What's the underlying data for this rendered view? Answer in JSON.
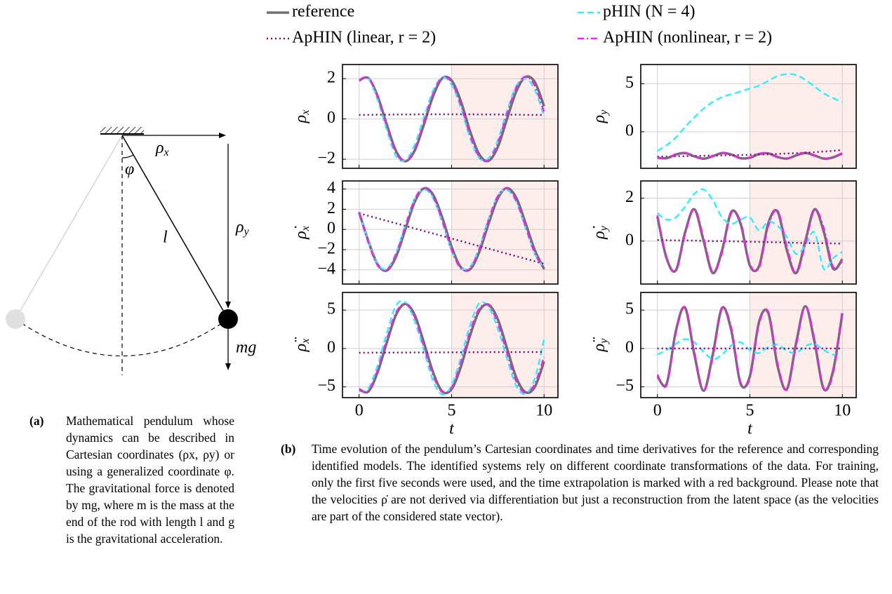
{
  "diagram": {
    "rho_x": "ρ",
    "rho_x_sub": "x",
    "rho_y": "ρ",
    "rho_y_sub": "y",
    "l": "l",
    "mg": "mg",
    "phi": "φ"
  },
  "captions": {
    "a": {
      "label": "(a)",
      "text": "Mathematical pendulum whose dynamics can be described in Cartesian coordinates (ρx, ρy) or using a generalized coordinate φ. The gravitational force is denoted by mg, where m is the mass at the end of the rod with length l and g is the gravitational acceleration."
    },
    "b": {
      "label": "(b)",
      "text": "Time evolution of the pendulum’s Cartesian coordinates and time derivatives for the reference and corresponding identified models. The identified systems rely on different coordinate transformations of the data. For training, only the first five seconds were used, and the time extrapolation is marked with a red background. Please note that the velocities ρ̇ are not derived via differentiation but just a reconstruction from the latent space (as the velocities are part of the considered state vector)."
    }
  },
  "chart_data": [
    {
      "type": "line",
      "ylabel": "ρ",
      "ylabel_sub": "x",
      "xlim": [
        -0.9,
        10.75
      ],
      "xticks": [
        0,
        5,
        10
      ],
      "ylim": [
        -2.45,
        2.7
      ],
      "yticks": [
        {
          "value": -2,
          "label": "−2"
        },
        0,
        2
      ],
      "grid": true,
      "shade_from": 5,
      "x": [
        0,
        0.5,
        1,
        1.5,
        2,
        2.5,
        3,
        3.5,
        4,
        4.5,
        5,
        5.5,
        6,
        6.5,
        7,
        7.5,
        8,
        8.5,
        9,
        9.5,
        10
      ],
      "series": [
        {
          "name": "reference",
          "color": "#707070",
          "style": "solid",
          "values": [
            1.91,
            2.02,
            1.13,
            -0.29,
            -1.6,
            -2.1,
            -1.58,
            -0.29,
            1.13,
            2.02,
            1.91,
            0.88,
            -0.61,
            -1.76,
            -2.08,
            -1.39,
            0.01,
            1.37,
            2.08,
            1.83,
            0.63
          ]
        },
        {
          "name": "pHIN (N = 4)",
          "color": "#33eeff",
          "style": "dashed",
          "values": [
            1.95,
            2.0,
            0.95,
            -0.55,
            -1.85,
            -2.05,
            -1.3,
            0.05,
            1.4,
            2.05,
            1.7,
            0.55,
            -0.95,
            -1.95,
            -1.95,
            -1.05,
            0.4,
            1.65,
            2.0,
            1.45,
            0.15
          ]
        },
        {
          "name": "ApHIN (linear, r = 2)",
          "color": "#7a0a7a",
          "style": "dotted",
          "values": [
            0.2,
            0.2,
            0.21,
            0.21,
            0.22,
            0.22,
            0.22,
            0.23,
            0.23,
            0.23,
            0.23,
            0.23,
            0.23,
            0.22,
            0.22,
            0.22,
            0.21,
            0.21,
            0.2,
            0.2,
            0.2
          ]
        },
        {
          "name": "ApHIN (nonlinear, r = 2)",
          "color": "#ee22ee",
          "style": "dashdot",
          "values": [
            1.93,
            2.03,
            1.08,
            -0.38,
            -1.68,
            -2.1,
            -1.5,
            -0.15,
            1.25,
            2.05,
            1.82,
            0.7,
            -0.8,
            -1.88,
            -2.05,
            -1.2,
            0.25,
            1.55,
            2.1,
            1.65,
            0.35
          ]
        }
      ]
    },
    {
      "type": "line",
      "ylabel": "ρ",
      "ylabel_sub": "y",
      "xlim": [
        -0.9,
        10.75
      ],
      "xticks": [
        0,
        5,
        10
      ],
      "ylim": [
        -3.8,
        7
      ],
      "yticks": [
        0,
        5
      ],
      "grid": true,
      "shade_from": 5,
      "x": [
        0,
        0.5,
        1,
        1.5,
        2,
        2.5,
        3,
        3.5,
        4,
        4.5,
        5,
        5.5,
        6,
        6.5,
        7,
        7.5,
        8,
        8.5,
        9,
        9.5,
        10
      ],
      "series": [
        {
          "color": "#707070",
          "style": "solid",
          "values": [
            -2.7,
            -2.75,
            -2.37,
            -2.21,
            -2.55,
            -2.8,
            -2.54,
            -2.21,
            -2.37,
            -2.75,
            -2.7,
            -2.31,
            -2.25,
            -2.62,
            -2.79,
            -2.46,
            -2.2,
            -2.46,
            -2.79,
            -2.66,
            -2.25
          ]
        },
        {
          "color": "#33eeff",
          "style": "dashed",
          "values": [
            -2.0,
            -1.4,
            -0.6,
            0.5,
            1.5,
            2.4,
            3.1,
            3.6,
            3.9,
            4.2,
            4.5,
            4.8,
            5.3,
            5.8,
            6.0,
            5.9,
            5.4,
            4.7,
            4.0,
            3.5,
            3.1
          ]
        },
        {
          "color": "#7a0a7a",
          "style": "dotted",
          "values": [
            -2.6,
            -2.58,
            -2.56,
            -2.54,
            -2.52,
            -2.5,
            -2.48,
            -2.46,
            -2.44,
            -2.42,
            -2.4,
            -2.37,
            -2.34,
            -2.3,
            -2.26,
            -2.22,
            -2.17,
            -2.12,
            -2.05,
            -1.98,
            -1.9
          ]
        },
        {
          "color": "#ee22ee",
          "style": "dashdot",
          "values": [
            -2.72,
            -2.74,
            -2.33,
            -2.2,
            -2.58,
            -2.8,
            -2.5,
            -2.2,
            -2.41,
            -2.77,
            -2.66,
            -2.27,
            -2.28,
            -2.67,
            -2.78,
            -2.41,
            -2.2,
            -2.51,
            -2.8,
            -2.6,
            -2.22
          ]
        }
      ]
    },
    {
      "type": "line",
      "ylabel": "ρ̇",
      "ylabel_sub": "x",
      "xlim": [
        -0.9,
        10.75
      ],
      "xticks": [
        0,
        5,
        10
      ],
      "ylim": [
        -5.4,
        4.8
      ],
      "yticks": [
        {
          "value": -4,
          "label": "−4"
        },
        {
          "value": -2,
          "label": "−2"
        },
        0,
        2,
        4
      ],
      "grid": true,
      "shade_from": 5,
      "x": [
        0,
        0.5,
        1,
        1.5,
        2,
        2.5,
        3,
        3.5,
        4,
        4.5,
        5,
        5.5,
        6,
        6.5,
        7,
        7.5,
        8,
        8.5,
        9,
        9.5,
        10
      ],
      "series": [
        {
          "color": "#707070",
          "style": "solid",
          "values": [
            1.7,
            -1.16,
            -3.45,
            -4.06,
            -2.67,
            0,
            2.7,
            4.06,
            3.44,
            1.15,
            -1.72,
            -3.73,
            -3.94,
            -2.21,
            0.57,
            3.08,
            4.1,
            3.12,
            0.62,
            -2.05,
            -3.9
          ]
        },
        {
          "color": "#33eeff",
          "style": "dashed",
          "values": [
            1.75,
            -1.2,
            -3.4,
            -3.9,
            -2.3,
            0.45,
            3.0,
            3.95,
            3.1,
            0.7,
            -2.1,
            -3.8,
            -3.7,
            -1.8,
            1.05,
            3.35,
            3.9,
            2.7,
            0.15,
            -2.4,
            -3.8
          ]
        },
        {
          "color": "#7a0a7a",
          "style": "dotted",
          "values": [
            1.6,
            1.35,
            1.1,
            0.85,
            0.6,
            0.35,
            0.1,
            -0.15,
            -0.4,
            -0.65,
            -0.9,
            -1.15,
            -1.4,
            -1.65,
            -1.9,
            -2.15,
            -2.4,
            -2.65,
            -2.9,
            -3.15,
            -3.4
          ]
        },
        {
          "color": "#ee22ee",
          "style": "dashdot",
          "values": [
            1.7,
            -1.3,
            -3.55,
            -4.0,
            -2.45,
            0.3,
            2.95,
            4.1,
            3.25,
            0.85,
            -2.0,
            -3.85,
            -3.85,
            -1.95,
            0.9,
            3.3,
            4.05,
            2.85,
            0.3,
            -2.35,
            -3.95
          ]
        }
      ]
    },
    {
      "type": "line",
      "ylabel": "ρ̇",
      "ylabel_sub": "y",
      "xlim": [
        -0.9,
        10.75
      ],
      "xticks": [
        0,
        5,
        10
      ],
      "ylim": [
        -2.0,
        2.8
      ],
      "yticks": [
        0,
        2
      ],
      "grid": true,
      "shade_from": 5,
      "x": [
        0,
        0.5,
        1,
        1.5,
        2,
        2.5,
        3,
        3.5,
        4,
        4.5,
        5,
        5.5,
        6,
        6.5,
        7,
        7.5,
        8,
        8.5,
        9,
        9.5,
        10
      ],
      "series": [
        {
          "color": "#707070",
          "style": "solid",
          "values": [
            1.14,
            -0.81,
            -1.36,
            0.41,
            1.48,
            0,
            -1.49,
            -0.42,
            1.36,
            0.8,
            -1.14,
            -1.16,
            0.84,
            1.37,
            -0.43,
            -1.49,
            0.01,
            1.48,
            0.42,
            -1.28,
            -0.84
          ]
        },
        {
          "color": "#33eeff",
          "style": "dashed",
          "values": [
            1.3,
            1.0,
            1.1,
            1.6,
            2.2,
            2.4,
            1.9,
            1.1,
            0.8,
            1.0,
            1.1,
            0.5,
            0.9,
            0.7,
            0.2,
            -0.6,
            -0.2,
            0.4,
            -1.3,
            -0.8,
            -0.5
          ]
        },
        {
          "color": "#7a0a7a",
          "style": "dotted",
          "values": [
            0.05,
            0.04,
            0.03,
            0.03,
            0.02,
            0.01,
            0.0,
            0.0,
            -0.01,
            -0.02,
            -0.03,
            -0.04,
            -0.05,
            -0.06,
            -0.07,
            -0.08,
            -0.09,
            -0.1,
            -0.1,
            -0.11,
            -0.12
          ]
        },
        {
          "color": "#ee22ee",
          "style": "dashdot",
          "values": [
            1.2,
            -0.75,
            -1.4,
            0.3,
            1.5,
            0.15,
            -1.45,
            -0.55,
            1.3,
            0.9,
            -1.05,
            -1.25,
            0.7,
            1.42,
            -0.25,
            -1.5,
            -0.15,
            1.45,
            0.6,
            -1.2,
            -0.95
          ]
        }
      ]
    },
    {
      "type": "line",
      "ylabel": "ρ̈",
      "ylabel_sub": "x",
      "xlabel": "t",
      "xlim": [
        -0.9,
        10.75
      ],
      "xticks": [
        0,
        5,
        10
      ],
      "ylim": [
        -6.4,
        7.3
      ],
      "yticks": [
        {
          "value": -5,
          "label": "−5"
        },
        0,
        5
      ],
      "grid": true,
      "shade_from": 5,
      "x": [
        0,
        0.5,
        1,
        1.5,
        2,
        2.5,
        3,
        3.5,
        4,
        4.5,
        5,
        5.5,
        6,
        6.5,
        7,
        7.5,
        8,
        8.5,
        9,
        9.5,
        10
      ],
      "series": [
        {
          "color": "#707070",
          "style": "solid",
          "values": [
            -5.3,
            -5.6,
            -3.1,
            0.8,
            4.4,
            5.8,
            4.4,
            0.8,
            -3.1,
            -5.6,
            -5.3,
            -2.4,
            1.7,
            4.9,
            5.7,
            3.8,
            0,
            -3.8,
            -5.7,
            -5.0,
            -1.7
          ]
        },
        {
          "color": "#33eeff",
          "style": "dashed",
          "values": [
            -5.6,
            -5.2,
            -2.2,
            2.0,
            5.6,
            6.0,
            3.6,
            -0.2,
            -4.2,
            -6.0,
            -4.8,
            -1.2,
            3.0,
            5.9,
            5.4,
            2.6,
            -1.3,
            -4.9,
            -5.9,
            -3.9,
            1.2
          ]
        },
        {
          "color": "#7a0a7a",
          "style": "dotted",
          "values": [
            -0.55,
            -0.55,
            -0.54,
            -0.54,
            -0.53,
            -0.53,
            -0.52,
            -0.52,
            -0.51,
            -0.51,
            -0.5,
            -0.5,
            -0.49,
            -0.49,
            -0.48,
            -0.48,
            -0.47,
            -0.47,
            -0.46,
            -0.46,
            -0.45
          ]
        },
        {
          "color": "#ee22ee",
          "style": "dashdot",
          "values": [
            -5.4,
            -5.5,
            -2.8,
            1.2,
            4.7,
            5.8,
            4.1,
            0.3,
            -3.5,
            -5.7,
            -5.1,
            -1.9,
            2.2,
            5.2,
            5.6,
            3.3,
            -0.6,
            -4.3,
            -5.8,
            -4.6,
            -1.1
          ]
        }
      ]
    },
    {
      "type": "line",
      "ylabel": "ρ̈",
      "ylabel_sub": "y",
      "xlabel": "t",
      "xlim": [
        -0.9,
        10.75
      ],
      "xticks": [
        0,
        5,
        10
      ],
      "ylim": [
        -6.4,
        7.3
      ],
      "yticks": [
        {
          "value": -5,
          "label": "−5"
        },
        0,
        5
      ],
      "grid": true,
      "shade_from": 5,
      "x": [
        0,
        0.5,
        1,
        1.5,
        2,
        2.5,
        3,
        3.5,
        4,
        4.5,
        5,
        5.5,
        6,
        6.5,
        7,
        7.5,
        8,
        8.5,
        9,
        9.5,
        10
      ],
      "series": [
        {
          "color": "#707070",
          "style": "solid",
          "values": [
            -3.6,
            -4.6,
            2.3,
            5.3,
            -0.8,
            -5.5,
            -0.7,
            5.3,
            2.3,
            -4.6,
            -3.6,
            3.5,
            4.6,
            -2.3,
            -5.3,
            0.7,
            5.5,
            0.8,
            -5.3,
            -2.9,
            4.6
          ]
        },
        {
          "color": "#33eeff",
          "style": "dashed",
          "values": [
            -0.8,
            -0.2,
            0.6,
            1.2,
            0.8,
            -0.4,
            -1.4,
            -0.8,
            0.4,
            0.8,
            -0.2,
            -0.6,
            0.2,
            0.5,
            -0.3,
            -0.6,
            0.3,
            0.6,
            -0.2,
            -0.8,
            -0.6
          ]
        },
        {
          "color": "#7a0a7a",
          "style": "dotted",
          "values": [
            0,
            0,
            0,
            0,
            0,
            0,
            0,
            0,
            0,
            0,
            0,
            0,
            0,
            0,
            0,
            0,
            0,
            0,
            0,
            0,
            0
          ]
        },
        {
          "color": "#ee22ee",
          "style": "dashdot",
          "values": [
            -3.4,
            -4.8,
            2.0,
            5.4,
            -0.4,
            -5.5,
            -1.1,
            5.2,
            2.7,
            -4.4,
            -3.9,
            3.2,
            4.8,
            -1.9,
            -5.4,
            0.3,
            5.5,
            1.2,
            -5.2,
            -3.3,
            4.9
          ]
        }
      ]
    }
  ]
}
